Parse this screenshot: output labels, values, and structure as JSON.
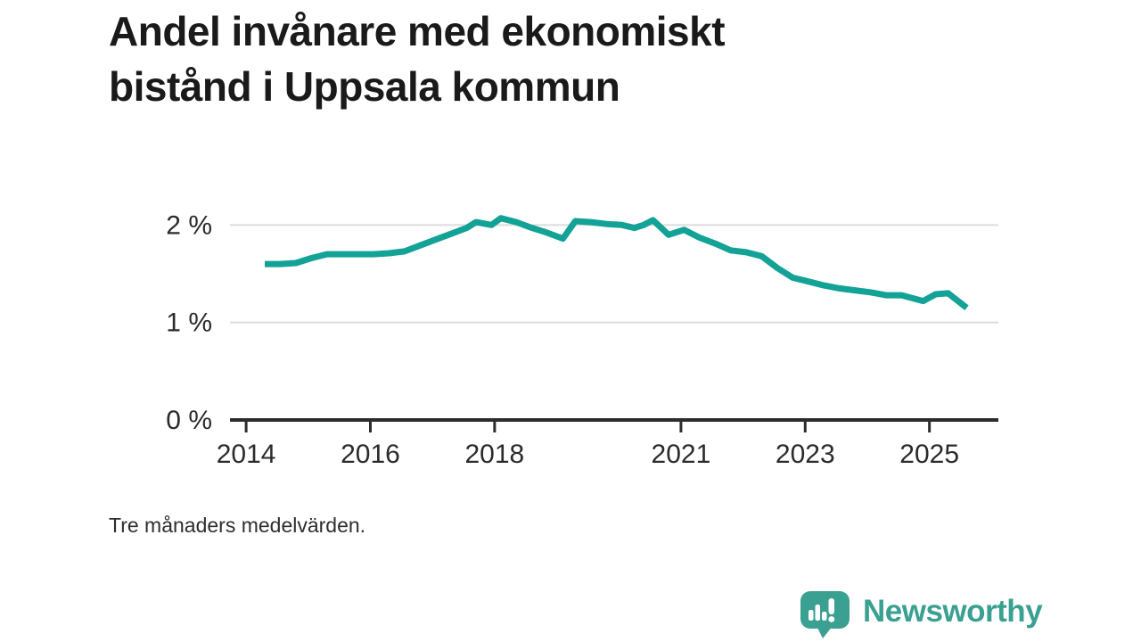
{
  "title": {
    "text": "Andel invånare med ekonomiskt bistånd i Uppsala kommun",
    "lines": [
      "Andel invånare med ekonomiskt",
      "bistånd i Uppsala kommun"
    ]
  },
  "footnote": "Tre månaders medelvärden.",
  "branding": {
    "name": "Newsworthy",
    "icon": "bar-chart-speech-bubble-icon",
    "color": "#3aa091"
  },
  "colors": {
    "background": "#ffffff",
    "line": "#12a296",
    "grid": "#dcdcdc",
    "axis": "#2d2d2d",
    "tick_text": "#2b2b2b",
    "title_text": "#1a1a1a"
  },
  "chart_data": {
    "type": "line",
    "title": "Andel invånare med ekonomiskt bistånd i Uppsala kommun",
    "footnote": "Tre månaders medelvärden.",
    "unit": "%",
    "grid": "horizontal",
    "legend": "none",
    "xlim": [
      2013.74,
      2026.11
    ],
    "ylim": [
      0,
      2.25
    ],
    "x_ticks": [
      2014,
      2016,
      2018,
      2021,
      2023,
      2025
    ],
    "x_tick_labels": [
      "2014",
      "2016",
      "2018",
      "2021",
      "2023",
      "2025"
    ],
    "y_ticks": [
      0,
      1,
      2
    ],
    "y_tick_labels": [
      "0 %",
      "1 %",
      "2 %"
    ],
    "x": [
      2014.3,
      2014.55,
      2014.8,
      2015.05,
      2015.3,
      2015.55,
      2015.8,
      2016.05,
      2016.3,
      2016.55,
      2016.8,
      2017.05,
      2017.3,
      2017.55,
      2017.7,
      2017.95,
      2018.1,
      2018.35,
      2018.6,
      2018.85,
      2019.1,
      2019.3,
      2019.55,
      2019.8,
      2020.05,
      2020.25,
      2020.4,
      2020.55,
      2020.8,
      2021.05,
      2021.3,
      2021.55,
      2021.8,
      2022.05,
      2022.3,
      2022.55,
      2022.8,
      2023.05,
      2023.3,
      2023.55,
      2023.8,
      2024.05,
      2024.3,
      2024.55,
      2024.9,
      2025.1,
      2025.3,
      2025.6
    ],
    "series": [
      {
        "name": "Andel invånare med ekonomiskt bistånd",
        "values": [
          1.6,
          1.6,
          1.61,
          1.66,
          1.7,
          1.7,
          1.7,
          1.7,
          1.71,
          1.73,
          1.79,
          1.85,
          1.91,
          1.97,
          2.03,
          2.0,
          2.07,
          2.03,
          1.97,
          1.92,
          1.86,
          2.04,
          2.03,
          2.01,
          2.0,
          1.97,
          2.0,
          2.05,
          1.9,
          1.95,
          1.87,
          1.81,
          1.74,
          1.72,
          1.68,
          1.56,
          1.46,
          1.42,
          1.38,
          1.35,
          1.33,
          1.31,
          1.28,
          1.28,
          1.22,
          1.29,
          1.3,
          1.15
        ]
      }
    ]
  }
}
